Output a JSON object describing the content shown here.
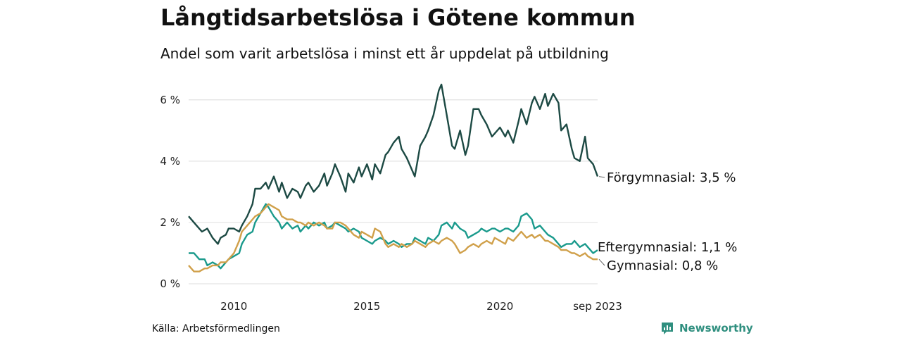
{
  "header": {
    "title": "Långtidsarbetslösa i Götene kommun",
    "subtitle": "Andel som varit arbetslösa i minst ett år uppdelat på utbildning"
  },
  "footer": {
    "source": "Källa: Arbetsförmedlingen",
    "brand": "Newsworthy"
  },
  "colors": {
    "forgymnasial": "#1d4a44",
    "eftergymnasial": "#1a9a8c",
    "gymnasial": "#d0a04a",
    "grid": "#e3e3e3",
    "brand": "#2f8f7f"
  },
  "chart_data": {
    "type": "line",
    "title": "Långtidsarbetslösa i Götene kommun",
    "subtitle": "Andel som varit arbetslösa i minst ett år uppdelat på utbildning",
    "xlabel": "",
    "ylabel": "",
    "x_range": [
      2008.3,
      2023.67
    ],
    "ylim": [
      0,
      6.5
    ],
    "yticks": [
      0,
      2,
      4,
      6
    ],
    "ytick_labels": [
      "0 %",
      "2 %",
      "4 %",
      "6 %"
    ],
    "xticks": [
      2010,
      2015,
      2020,
      2023.67
    ],
    "xtick_labels": [
      "2010",
      "2015",
      "2020",
      "sep 2023"
    ],
    "grid": "horizontal",
    "series": [
      {
        "name": "Förgymnasial",
        "color": "#1d4a44",
        "label": "Förgymnasial: 3,5 %",
        "points": [
          [
            2008.3,
            2.2
          ],
          [
            2008.6,
            1.9
          ],
          [
            2008.8,
            1.7
          ],
          [
            2009.0,
            1.8
          ],
          [
            2009.2,
            1.5
          ],
          [
            2009.4,
            1.3
          ],
          [
            2009.5,
            1.5
          ],
          [
            2009.7,
            1.6
          ],
          [
            2009.8,
            1.8
          ],
          [
            2010.0,
            1.8
          ],
          [
            2010.2,
            1.7
          ],
          [
            2010.3,
            1.9
          ],
          [
            2010.5,
            2.2
          ],
          [
            2010.7,
            2.6
          ],
          [
            2010.8,
            3.1
          ],
          [
            2011.0,
            3.1
          ],
          [
            2011.2,
            3.3
          ],
          [
            2011.3,
            3.1
          ],
          [
            2011.5,
            3.5
          ],
          [
            2011.7,
            3.0
          ],
          [
            2011.8,
            3.3
          ],
          [
            2012.0,
            2.8
          ],
          [
            2012.2,
            3.1
          ],
          [
            2012.4,
            3.0
          ],
          [
            2012.5,
            2.8
          ],
          [
            2012.7,
            3.2
          ],
          [
            2012.8,
            3.3
          ],
          [
            2013.0,
            3.0
          ],
          [
            2013.2,
            3.2
          ],
          [
            2013.4,
            3.6
          ],
          [
            2013.5,
            3.2
          ],
          [
            2013.7,
            3.6
          ],
          [
            2013.8,
            3.9
          ],
          [
            2014.0,
            3.5
          ],
          [
            2014.2,
            3.0
          ],
          [
            2014.3,
            3.6
          ],
          [
            2014.5,
            3.3
          ],
          [
            2014.7,
            3.8
          ],
          [
            2014.8,
            3.5
          ],
          [
            2015.0,
            3.9
          ],
          [
            2015.2,
            3.4
          ],
          [
            2015.3,
            3.9
          ],
          [
            2015.5,
            3.6
          ],
          [
            2015.7,
            4.2
          ],
          [
            2015.8,
            4.3
          ],
          [
            2016.0,
            4.6
          ],
          [
            2016.2,
            4.8
          ],
          [
            2016.3,
            4.4
          ],
          [
            2016.5,
            4.1
          ],
          [
            2016.7,
            3.7
          ],
          [
            2016.8,
            3.5
          ],
          [
            2017.0,
            4.5
          ],
          [
            2017.2,
            4.8
          ],
          [
            2017.3,
            5.0
          ],
          [
            2017.5,
            5.5
          ],
          [
            2017.7,
            6.3
          ],
          [
            2017.8,
            6.5
          ],
          [
            2018.0,
            5.5
          ],
          [
            2018.2,
            4.5
          ],
          [
            2018.3,
            4.4
          ],
          [
            2018.5,
            5.0
          ],
          [
            2018.7,
            4.2
          ],
          [
            2018.8,
            4.5
          ],
          [
            2019.0,
            5.7
          ],
          [
            2019.2,
            5.7
          ],
          [
            2019.3,
            5.5
          ],
          [
            2019.5,
            5.2
          ],
          [
            2019.7,
            4.8
          ],
          [
            2019.8,
            4.9
          ],
          [
            2020.0,
            5.1
          ],
          [
            2020.2,
            4.8
          ],
          [
            2020.3,
            5.0
          ],
          [
            2020.5,
            4.6
          ],
          [
            2020.7,
            5.3
          ],
          [
            2020.8,
            5.7
          ],
          [
            2021.0,
            5.2
          ],
          [
            2021.2,
            5.9
          ],
          [
            2021.3,
            6.1
          ],
          [
            2021.5,
            5.7
          ],
          [
            2021.7,
            6.2
          ],
          [
            2021.8,
            5.8
          ],
          [
            2022.0,
            6.2
          ],
          [
            2022.2,
            5.9
          ],
          [
            2022.3,
            5.0
          ],
          [
            2022.5,
            5.2
          ],
          [
            2022.7,
            4.4
          ],
          [
            2022.8,
            4.1
          ],
          [
            2023.0,
            4.0
          ],
          [
            2023.2,
            4.8
          ],
          [
            2023.3,
            4.1
          ],
          [
            2023.5,
            3.9
          ],
          [
            2023.67,
            3.5
          ]
        ]
      },
      {
        "name": "Eftergymnasial",
        "color": "#1a9a8c",
        "label": "Eftergymnasial: 1,1 %",
        "points": [
          [
            2008.3,
            1.0
          ],
          [
            2008.5,
            1.0
          ],
          [
            2008.7,
            0.8
          ],
          [
            2008.9,
            0.8
          ],
          [
            2009.0,
            0.6
          ],
          [
            2009.2,
            0.7
          ],
          [
            2009.4,
            0.6
          ],
          [
            2009.5,
            0.5
          ],
          [
            2009.7,
            0.7
          ],
          [
            2009.8,
            0.8
          ],
          [
            2010.0,
            0.9
          ],
          [
            2010.2,
            1.0
          ],
          [
            2010.3,
            1.3
          ],
          [
            2010.5,
            1.6
          ],
          [
            2010.7,
            1.7
          ],
          [
            2010.8,
            2.0
          ],
          [
            2011.0,
            2.3
          ],
          [
            2011.2,
            2.6
          ],
          [
            2011.3,
            2.5
          ],
          [
            2011.5,
            2.2
          ],
          [
            2011.7,
            2.0
          ],
          [
            2011.8,
            1.8
          ],
          [
            2012.0,
            2.0
          ],
          [
            2012.2,
            1.8
          ],
          [
            2012.4,
            1.9
          ],
          [
            2012.5,
            1.7
          ],
          [
            2012.7,
            1.9
          ],
          [
            2012.8,
            1.8
          ],
          [
            2013.0,
            2.0
          ],
          [
            2013.2,
            1.9
          ],
          [
            2013.4,
            2.0
          ],
          [
            2013.5,
            1.8
          ],
          [
            2013.7,
            1.9
          ],
          [
            2013.8,
            2.0
          ],
          [
            2014.0,
            1.9
          ],
          [
            2014.2,
            1.8
          ],
          [
            2014.3,
            1.7
          ],
          [
            2014.5,
            1.8
          ],
          [
            2014.7,
            1.7
          ],
          [
            2014.8,
            1.5
          ],
          [
            2015.0,
            1.4
          ],
          [
            2015.2,
            1.3
          ],
          [
            2015.3,
            1.4
          ],
          [
            2015.5,
            1.5
          ],
          [
            2015.7,
            1.4
          ],
          [
            2015.8,
            1.3
          ],
          [
            2016.0,
            1.4
          ],
          [
            2016.2,
            1.3
          ],
          [
            2016.3,
            1.2
          ],
          [
            2016.5,
            1.3
          ],
          [
            2016.7,
            1.3
          ],
          [
            2016.8,
            1.5
          ],
          [
            2017.0,
            1.4
          ],
          [
            2017.2,
            1.3
          ],
          [
            2017.3,
            1.5
          ],
          [
            2017.5,
            1.4
          ],
          [
            2017.7,
            1.6
          ],
          [
            2017.8,
            1.9
          ],
          [
            2018.0,
            2.0
          ],
          [
            2018.2,
            1.8
          ],
          [
            2018.3,
            2.0
          ],
          [
            2018.5,
            1.8
          ],
          [
            2018.7,
            1.7
          ],
          [
            2018.8,
            1.5
          ],
          [
            2019.0,
            1.6
          ],
          [
            2019.2,
            1.7
          ],
          [
            2019.3,
            1.8
          ],
          [
            2019.5,
            1.7
          ],
          [
            2019.7,
            1.8
          ],
          [
            2019.8,
            1.8
          ],
          [
            2020.0,
            1.7
          ],
          [
            2020.2,
            1.8
          ],
          [
            2020.3,
            1.8
          ],
          [
            2020.5,
            1.7
          ],
          [
            2020.7,
            1.9
          ],
          [
            2020.8,
            2.2
          ],
          [
            2021.0,
            2.3
          ],
          [
            2021.2,
            2.1
          ],
          [
            2021.3,
            1.8
          ],
          [
            2021.5,
            1.9
          ],
          [
            2021.7,
            1.7
          ],
          [
            2021.8,
            1.6
          ],
          [
            2022.0,
            1.5
          ],
          [
            2022.2,
            1.3
          ],
          [
            2022.3,
            1.2
          ],
          [
            2022.5,
            1.3
          ],
          [
            2022.7,
            1.3
          ],
          [
            2022.8,
            1.4
          ],
          [
            2023.0,
            1.2
          ],
          [
            2023.2,
            1.3
          ],
          [
            2023.3,
            1.2
          ],
          [
            2023.5,
            1.0
          ],
          [
            2023.67,
            1.1
          ]
        ]
      },
      {
        "name": "Gymnasial",
        "color": "#d0a04a",
        "label": "Gymnasial: 0,8 %",
        "points": [
          [
            2008.3,
            0.6
          ],
          [
            2008.5,
            0.4
          ],
          [
            2008.7,
            0.4
          ],
          [
            2008.9,
            0.5
          ],
          [
            2009.0,
            0.5
          ],
          [
            2009.2,
            0.6
          ],
          [
            2009.4,
            0.6
          ],
          [
            2009.5,
            0.7
          ],
          [
            2009.7,
            0.7
          ],
          [
            2009.8,
            0.8
          ],
          [
            2010.0,
            1.0
          ],
          [
            2010.2,
            1.4
          ],
          [
            2010.3,
            1.7
          ],
          [
            2010.5,
            1.9
          ],
          [
            2010.7,
            2.1
          ],
          [
            2010.8,
            2.2
          ],
          [
            2011.0,
            2.3
          ],
          [
            2011.2,
            2.5
          ],
          [
            2011.3,
            2.6
          ],
          [
            2011.5,
            2.5
          ],
          [
            2011.7,
            2.4
          ],
          [
            2011.8,
            2.2
          ],
          [
            2012.0,
            2.1
          ],
          [
            2012.2,
            2.1
          ],
          [
            2012.4,
            2.0
          ],
          [
            2012.5,
            2.0
          ],
          [
            2012.7,
            1.9
          ],
          [
            2012.8,
            2.0
          ],
          [
            2013.0,
            1.9
          ],
          [
            2013.2,
            2.0
          ],
          [
            2013.4,
            1.9
          ],
          [
            2013.5,
            1.8
          ],
          [
            2013.7,
            1.8
          ],
          [
            2013.8,
            2.0
          ],
          [
            2014.0,
            2.0
          ],
          [
            2014.2,
            1.9
          ],
          [
            2014.3,
            1.8
          ],
          [
            2014.5,
            1.6
          ],
          [
            2014.7,
            1.5
          ],
          [
            2014.8,
            1.7
          ],
          [
            2015.0,
            1.6
          ],
          [
            2015.2,
            1.5
          ],
          [
            2015.3,
            1.8
          ],
          [
            2015.5,
            1.7
          ],
          [
            2015.7,
            1.3
          ],
          [
            2015.8,
            1.2
          ],
          [
            2016.0,
            1.3
          ],
          [
            2016.2,
            1.2
          ],
          [
            2016.3,
            1.3
          ],
          [
            2016.5,
            1.2
          ],
          [
            2016.7,
            1.3
          ],
          [
            2016.8,
            1.4
          ],
          [
            2017.0,
            1.3
          ],
          [
            2017.2,
            1.2
          ],
          [
            2017.3,
            1.3
          ],
          [
            2017.5,
            1.4
          ],
          [
            2017.7,
            1.3
          ],
          [
            2017.8,
            1.4
          ],
          [
            2018.0,
            1.5
          ],
          [
            2018.2,
            1.4
          ],
          [
            2018.3,
            1.3
          ],
          [
            2018.5,
            1.0
          ],
          [
            2018.7,
            1.1
          ],
          [
            2018.8,
            1.2
          ],
          [
            2019.0,
            1.3
          ],
          [
            2019.2,
            1.2
          ],
          [
            2019.3,
            1.3
          ],
          [
            2019.5,
            1.4
          ],
          [
            2019.7,
            1.3
          ],
          [
            2019.8,
            1.5
          ],
          [
            2020.0,
            1.4
          ],
          [
            2020.2,
            1.3
          ],
          [
            2020.3,
            1.5
          ],
          [
            2020.5,
            1.4
          ],
          [
            2020.7,
            1.6
          ],
          [
            2020.8,
            1.7
          ],
          [
            2021.0,
            1.5
          ],
          [
            2021.2,
            1.6
          ],
          [
            2021.3,
            1.5
          ],
          [
            2021.5,
            1.6
          ],
          [
            2021.7,
            1.4
          ],
          [
            2021.8,
            1.4
          ],
          [
            2022.0,
            1.3
          ],
          [
            2022.2,
            1.2
          ],
          [
            2022.3,
            1.1
          ],
          [
            2022.5,
            1.1
          ],
          [
            2022.7,
            1.0
          ],
          [
            2022.8,
            1.0
          ],
          [
            2023.0,
            0.9
          ],
          [
            2023.2,
            1.0
          ],
          [
            2023.3,
            0.9
          ],
          [
            2023.5,
            0.8
          ],
          [
            2023.67,
            0.8
          ]
        ]
      }
    ]
  }
}
